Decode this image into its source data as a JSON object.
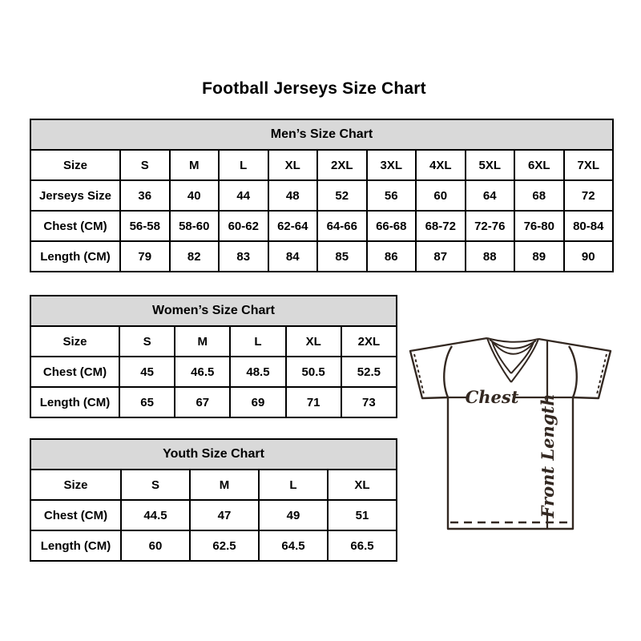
{
  "page": {
    "title": "Football Jerseys Size Chart"
  },
  "colors": {
    "table_border": "#000000",
    "table_header_bg": "#d9d9d9",
    "diagram_line": "#332821",
    "background": "#ffffff"
  },
  "tables": {
    "mens": {
      "title": "Men’s Size Chart",
      "rows": [
        [
          "Size",
          "S",
          "M",
          "L",
          "XL",
          "2XL",
          "3XL",
          "4XL",
          "5XL",
          "6XL",
          "7XL"
        ],
        [
          "Jerseys Size",
          "36",
          "40",
          "44",
          "48",
          "52",
          "56",
          "60",
          "64",
          "68",
          "72"
        ],
        [
          "Chest (CM)",
          "56-58",
          "58-60",
          "60-62",
          "62-64",
          "64-66",
          "66-68",
          "68-72",
          "72-76",
          "76-80",
          "80-84"
        ],
        [
          "Length (CM)",
          "79",
          "82",
          "83",
          "84",
          "85",
          "86",
          "87",
          "88",
          "89",
          "90"
        ]
      ]
    },
    "womens": {
      "title": "Women’s Size Chart",
      "rows": [
        [
          "Size",
          "S",
          "M",
          "L",
          "XL",
          "2XL"
        ],
        [
          "Chest (CM)",
          "45",
          "46.5",
          "48.5",
          "50.5",
          "52.5"
        ],
        [
          "Length (CM)",
          "65",
          "67",
          "69",
          "71",
          "73"
        ]
      ]
    },
    "youth": {
      "title": "Youth Size Chart",
      "rows": [
        [
          "Size",
          "S",
          "M",
          "L",
          "XL"
        ],
        [
          "Chest (CM)",
          "44.5",
          "47",
          "49",
          "51"
        ],
        [
          "Length (CM)",
          "60",
          "62.5",
          "64.5",
          "66.5"
        ]
      ]
    }
  },
  "diagram": {
    "chest_label": "Chest",
    "front_length_label": "Front Length"
  }
}
